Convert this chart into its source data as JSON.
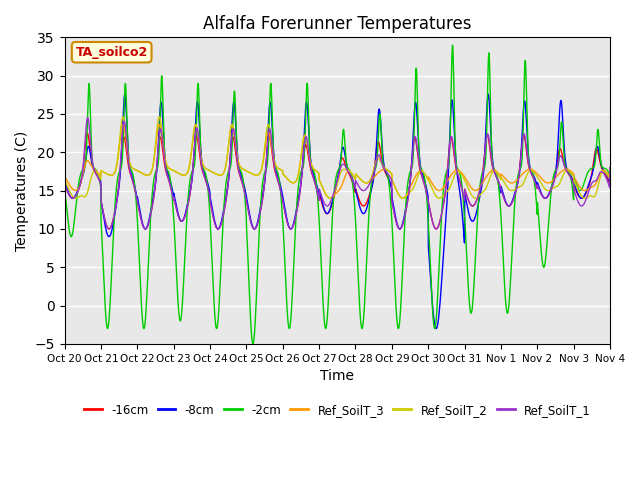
{
  "title": "Alfalfa Forerunner Temperatures",
  "xlabel": "Time",
  "ylabel": "Temperatures (C)",
  "ylim": [
    -5,
    35
  ],
  "annotation_text": "TA_soilco2",
  "annotation_color": "#cc0000",
  "annotation_bg": "#ffffdd",
  "annotation_edge": "#cc8800",
  "background_color": "#e8e8e8",
  "x_tick_labels": [
    "Oct 20",
    "Oct 21",
    "Oct 22",
    "Oct 23",
    "Oct 24",
    "Oct 25",
    "Oct 26",
    "Oct 27",
    "Oct 28",
    "Oct 29",
    "Oct 30",
    "Oct 31",
    "Nov 1",
    "Nov 2",
    "Nov 3",
    "Nov 4"
  ],
  "series_colors": [
    "#ff0000",
    "#0000ff",
    "#00cc00",
    "#ff9900",
    "#cccc00",
    "#9933cc"
  ],
  "series_labels": [
    "-16cm",
    "-8cm",
    "-2cm",
    "Ref_SoilT_3",
    "Ref_SoilT_2",
    "Ref_SoilT_1"
  ],
  "num_days": 15,
  "points_per_day": 144,
  "figsize": [
    6.4,
    4.8
  ],
  "dpi": 100
}
